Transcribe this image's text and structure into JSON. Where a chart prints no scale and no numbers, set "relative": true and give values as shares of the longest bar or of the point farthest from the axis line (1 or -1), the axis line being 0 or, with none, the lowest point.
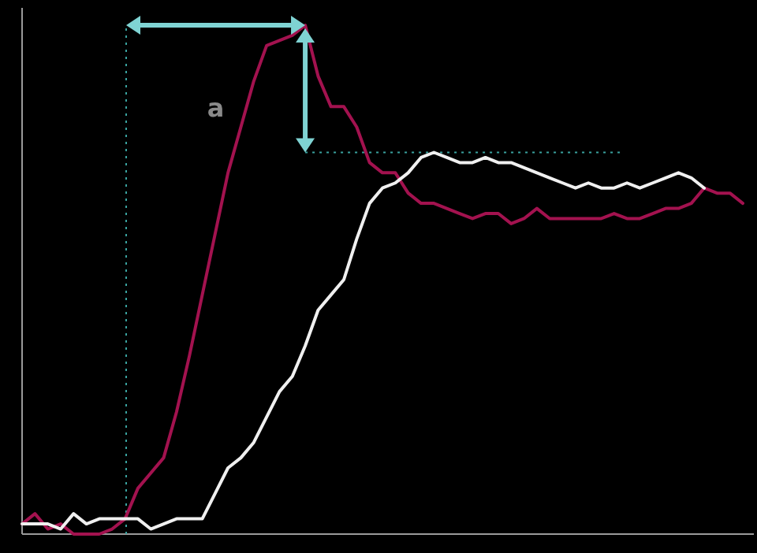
{
  "chart_data": {
    "type": "line",
    "relative": true,
    "categories": [
      null,
      null,
      null,
      null,
      null,
      null,
      null,
      null,
      null,
      null,
      null,
      null,
      null,
      null,
      null,
      null,
      null,
      null,
      null,
      null,
      null,
      null,
      null,
      null,
      null,
      null,
      null,
      null,
      null,
      null,
      null,
      null,
      null,
      null,
      null,
      null,
      null,
      null,
      null,
      null,
      null,
      null,
      null,
      null,
      null,
      null,
      null,
      null,
      null,
      null,
      null,
      null,
      null,
      null,
      null,
      null,
      null
    ],
    "marker": "none",
    "line_style": "solid",
    "series": [
      {
        "color": "#a3124f",
        "values": [
          0.02,
          0.04,
          0.01,
          0.02,
          0,
          0,
          0,
          0.01,
          0.03,
          0.09,
          0.12,
          0.15,
          0.24,
          0.35,
          0.47,
          0.59,
          0.71,
          0.8,
          0.89,
          0.96,
          0.97,
          0.98,
          1,
          0.9,
          0.84,
          0.84,
          0.8,
          0.73,
          0.71,
          0.71,
          0.67,
          0.65,
          0.65,
          0.64,
          0.63,
          0.62,
          0.63,
          0.63,
          0.61,
          0.62,
          0.64,
          0.62,
          0.62,
          0.62,
          0.62,
          0.62,
          0.63,
          0.62,
          0.62,
          0.63,
          0.64,
          0.64,
          0.65,
          0.68,
          0.67,
          0.67,
          0.65
        ]
      },
      {
        "color": "#f0f0f0",
        "values": [
          0.02,
          0.02,
          0.02,
          0.01,
          0.04,
          0.02,
          0.03,
          0.03,
          0.03,
          0.03,
          0.01,
          0.02,
          0.03,
          0.03,
          0.03,
          0.08,
          0.13,
          0.15,
          0.18,
          0.23,
          0.28,
          0.31,
          0.37,
          0.44,
          0.47,
          0.5,
          0.58,
          0.65,
          0.68,
          0.69,
          0.71,
          0.74,
          0.75,
          0.74,
          0.73,
          0.73,
          0.74,
          0.73,
          0.73,
          0.72,
          0.71,
          0.7,
          0.69,
          0.68,
          0.69,
          0.68,
          0.68,
          0.69,
          0.68,
          0.69,
          0.7,
          0.71,
          0.7,
          0.68,
          null,
          null,
          null
        ]
      }
    ],
    "ref_lines": [
      {
        "axis": "y",
        "value": 0.75,
        "color": "#3aa3a0",
        "line_style": "dotted"
      }
    ],
    "annotations": [
      "a"
    ]
  }
}
